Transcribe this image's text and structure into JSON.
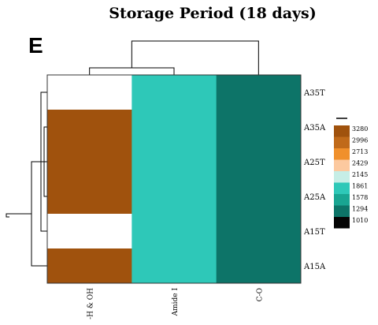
{
  "chart_data": {
    "type": "heatmap",
    "title": "Storage Period (18 days)",
    "panel_label": "E",
    "rows": [
      "A35T",
      "A35A",
      "A25T",
      "A25A",
      "A15T",
      "A15A"
    ],
    "columns": [
      "-H & OH",
      "Amide I",
      "C-O"
    ],
    "values": [
      [
        null,
        1861,
        1294
      ],
      [
        3280,
        1861,
        1294
      ],
      [
        3280,
        1861,
        1294
      ],
      [
        3280,
        1861,
        1294
      ],
      [
        null,
        1861,
        1294
      ],
      [
        3280,
        1861,
        1294
      ]
    ],
    "legend": {
      "position": "right",
      "ticks": [
        "3280",
        "2996",
        "2713",
        "2429",
        "2145",
        "1861",
        "1578",
        "1294",
        "1010"
      ],
      "colors": [
        "#a0520d",
        "#c06a1a",
        "#f0902c",
        "#fcc99f",
        "#c6eee6",
        "#2ec8b8",
        "#19a592",
        "#0d7468",
        "#050505"
      ]
    },
    "dendrogram_rows": true,
    "dendrogram_columns": true
  }
}
